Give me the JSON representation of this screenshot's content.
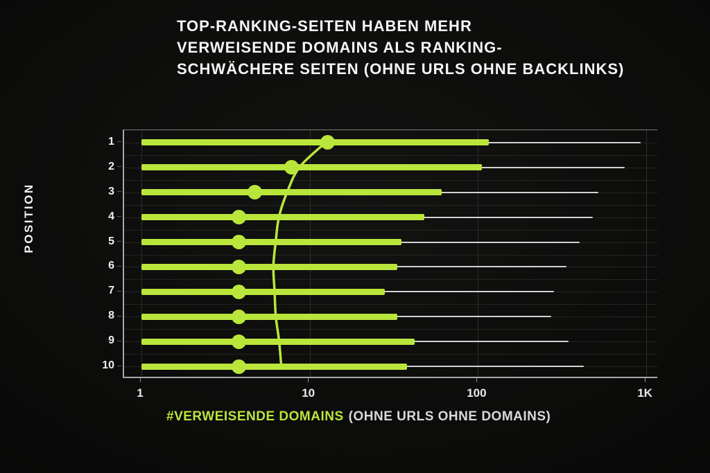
{
  "title": {
    "lines": [
      "TOP-RANKING-SEITEN HABEN MEHR",
      "VERWEISENDE DOMAINS ALS RANKING-",
      "SCHWÄCHERE SEITEN (OHNE URLS OHNE BACKLINKS)"
    ]
  },
  "y_axis": {
    "title": "POSITION"
  },
  "x_axis": {
    "caption_highlight": "#VERWEISENDE DOMAINS",
    "caption_rest": "(OHNE URLS OHNE DOMAINS)",
    "ticks": [
      {
        "value": 1,
        "label": "1"
      },
      {
        "value": 10,
        "label": "10"
      },
      {
        "value": 100,
        "label": "100"
      },
      {
        "value": 1000,
        "label": "1K"
      }
    ]
  },
  "colors": {
    "accent_green": "#bae63c",
    "whisker_gray": "#d2d2d2",
    "background": "#0c0c0b",
    "title_text": "#f5f5f5",
    "muted_text": "#d9d9d9"
  },
  "chart_data": {
    "type": "bar",
    "orientation": "horizontal",
    "x_scale": "log",
    "xlim": [
      1,
      1000
    ],
    "grid": true,
    "title": "TOP-RANKING-SEITEN HABEN MEHR VERWEISENDE DOMAINS ALS RANKING-SCHWÄCHERE SEITEN (OHNE URLS OHNE BACKLINKS)",
    "xlabel": "#VERWEISENDE DOMAINS (OHNE URLS OHNE DOMAINS)",
    "ylabel": "POSITION",
    "categories": [
      1,
      2,
      3,
      4,
      5,
      6,
      7,
      8,
      9,
      10
    ],
    "series": [
      {
        "name": "referring-domains-bar",
        "values": [
          116,
          105,
          61,
          48,
          35,
          33,
          28,
          33,
          42,
          38
        ]
      },
      {
        "name": "upper-whisker-end",
        "values": [
          930,
          745,
          520,
          480,
          400,
          335,
          283,
          272,
          345,
          425
        ]
      },
      {
        "name": "median-dot",
        "values": [
          12.8,
          7.8,
          4.7,
          3.8,
          3.8,
          3.8,
          3.8,
          3.8,
          3.8,
          3.8
        ]
      },
      {
        "name": "smoothed-trend-line",
        "values": [
          12.8,
          8.9,
          7.5,
          6.7,
          6.4,
          6.2,
          6.3,
          6.4,
          6.7,
          6.9
        ]
      }
    ]
  }
}
